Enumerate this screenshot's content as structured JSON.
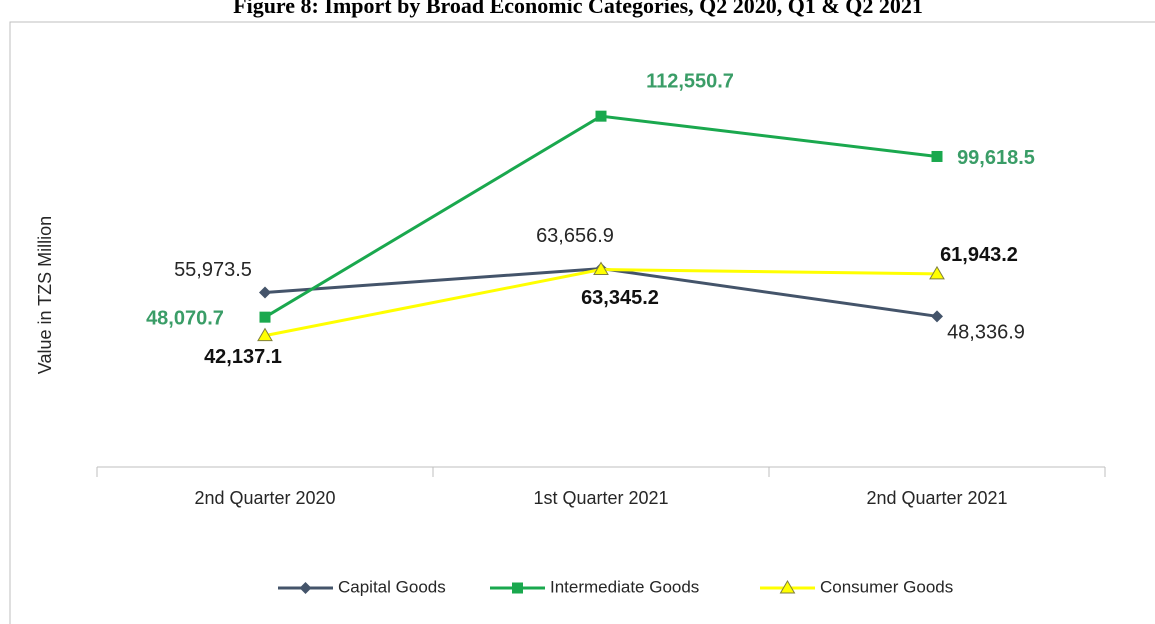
{
  "chart_data": {
    "type": "line",
    "title": "Figure 8: Import by Broad Economic Categories, Q2 2020, Q1 & Q2 2021",
    "y_label": "Value in TZS Million",
    "categories": [
      "2nd Quarter 2020",
      "1st Quarter 2021",
      "2nd Quarter 2021"
    ],
    "ylim": [
      0,
      140000
    ],
    "legend": "bottom",
    "series": [
      {
        "name": "Capital Goods",
        "color": "#44546a",
        "marker": "diamond",
        "values": [
          55973.5,
          63656.9,
          48336.9
        ],
        "value_labels": [
          "55,973.5",
          "63,656.9",
          "48,336.9"
        ]
      },
      {
        "name": "Intermediate Goods",
        "color": "#1aa84e",
        "marker": "square",
        "values": [
          48070.7,
          112550.7,
          99618.5
        ],
        "value_labels": [
          "48,070.7",
          "112,550.7",
          "99,618.5"
        ]
      },
      {
        "name": "Consumer Goods",
        "color": "#ffff00",
        "marker": "triangle",
        "values": [
          42137.1,
          63345.2,
          61943.2
        ],
        "value_labels": [
          "42,137.1",
          "63,345.2",
          "61,943.2"
        ]
      }
    ]
  }
}
